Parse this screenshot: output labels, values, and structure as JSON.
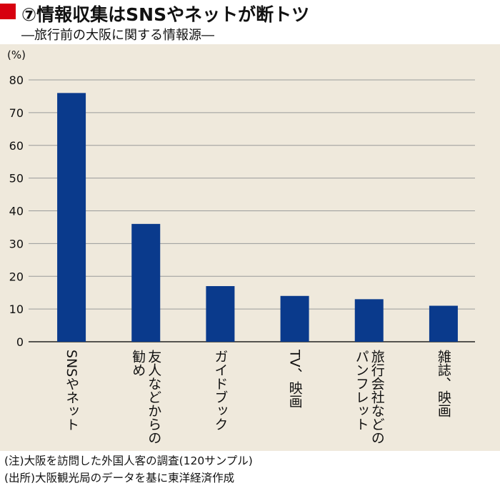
{
  "header": {
    "title": "⑦情報収集はSNSやネットが断トツ",
    "subtitle": "―旅行前の大阪に関する情報源―"
  },
  "colors": {
    "accent_red": "#d7000f",
    "bar": "#0a3a8c",
    "panel_bg": "#efe9dc"
  },
  "chart_data": {
    "type": "bar",
    "title": "⑦情報収集はSNSやネットが断トツ",
    "subtitle": "―旅行前の大阪に関する情報源―",
    "ylabel": "(%)",
    "xlabel": "",
    "ylim": [
      0,
      80
    ],
    "yticks": [
      0,
      10,
      20,
      30,
      40,
      50,
      60,
      70,
      80
    ],
    "grid": true,
    "categories": [
      "SNSやネット",
      "友人などからの勧め",
      "ガイドブック",
      "TV、映画",
      "旅行会社などのパンフレット",
      "雑誌、映画"
    ],
    "category_label_lines": [
      [
        "SNSやネット"
      ],
      [
        "友人などからの",
        "勧め"
      ],
      [
        "ガイドブック"
      ],
      [
        "TV、映画"
      ],
      [
        "旅行会社などの",
        "パンフレット"
      ],
      [
        "雑誌、映画"
      ]
    ],
    "values": [
      76,
      36,
      17,
      14,
      13,
      11
    ]
  },
  "notes": {
    "note": "(注)大阪を訪問した外国人客の調査(120サンプル)",
    "source": "(出所)大阪観光局のデータを基に東洋経済作成"
  }
}
